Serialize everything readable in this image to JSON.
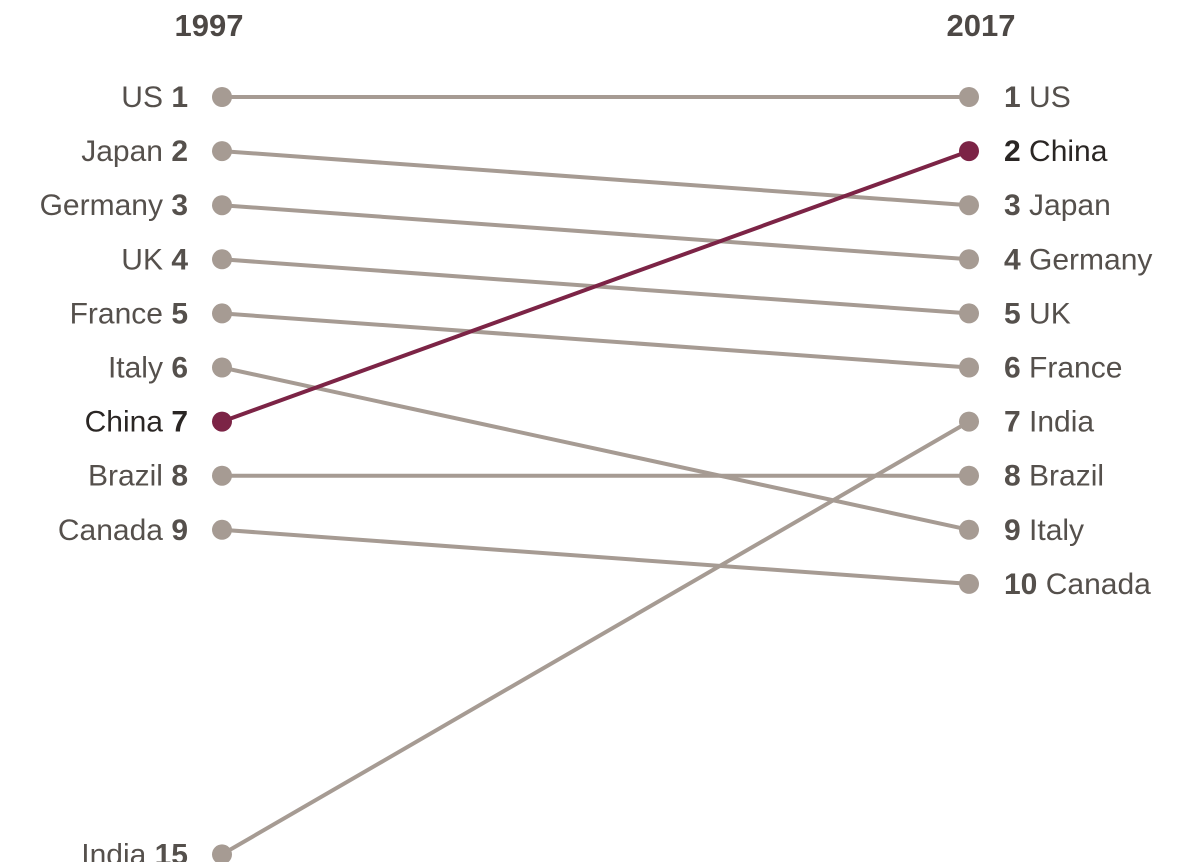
{
  "colors": {
    "line": "#a69b93",
    "highlight": "#7c2446"
  },
  "chart_data": {
    "type": "slope",
    "title": "",
    "x": [
      "1997",
      "2017"
    ],
    "y_axis": "rank",
    "ylim": [
      1,
      15
    ],
    "highlight": "China",
    "series": [
      {
        "name": "US",
        "rank_1997": 1,
        "rank_2017": 1
      },
      {
        "name": "Japan",
        "rank_1997": 2,
        "rank_2017": 3
      },
      {
        "name": "Germany",
        "rank_1997": 3,
        "rank_2017": 4
      },
      {
        "name": "UK",
        "rank_1997": 4,
        "rank_2017": 5
      },
      {
        "name": "France",
        "rank_1997": 5,
        "rank_2017": 6
      },
      {
        "name": "Italy",
        "rank_1997": 6,
        "rank_2017": 9
      },
      {
        "name": "China",
        "rank_1997": 7,
        "rank_2017": 2
      },
      {
        "name": "Brazil",
        "rank_1997": 8,
        "rank_2017": 8
      },
      {
        "name": "Canada",
        "rank_1997": 9,
        "rank_2017": 10
      },
      {
        "name": "India",
        "rank_1997": 15,
        "rank_2017": 7
      }
    ]
  }
}
